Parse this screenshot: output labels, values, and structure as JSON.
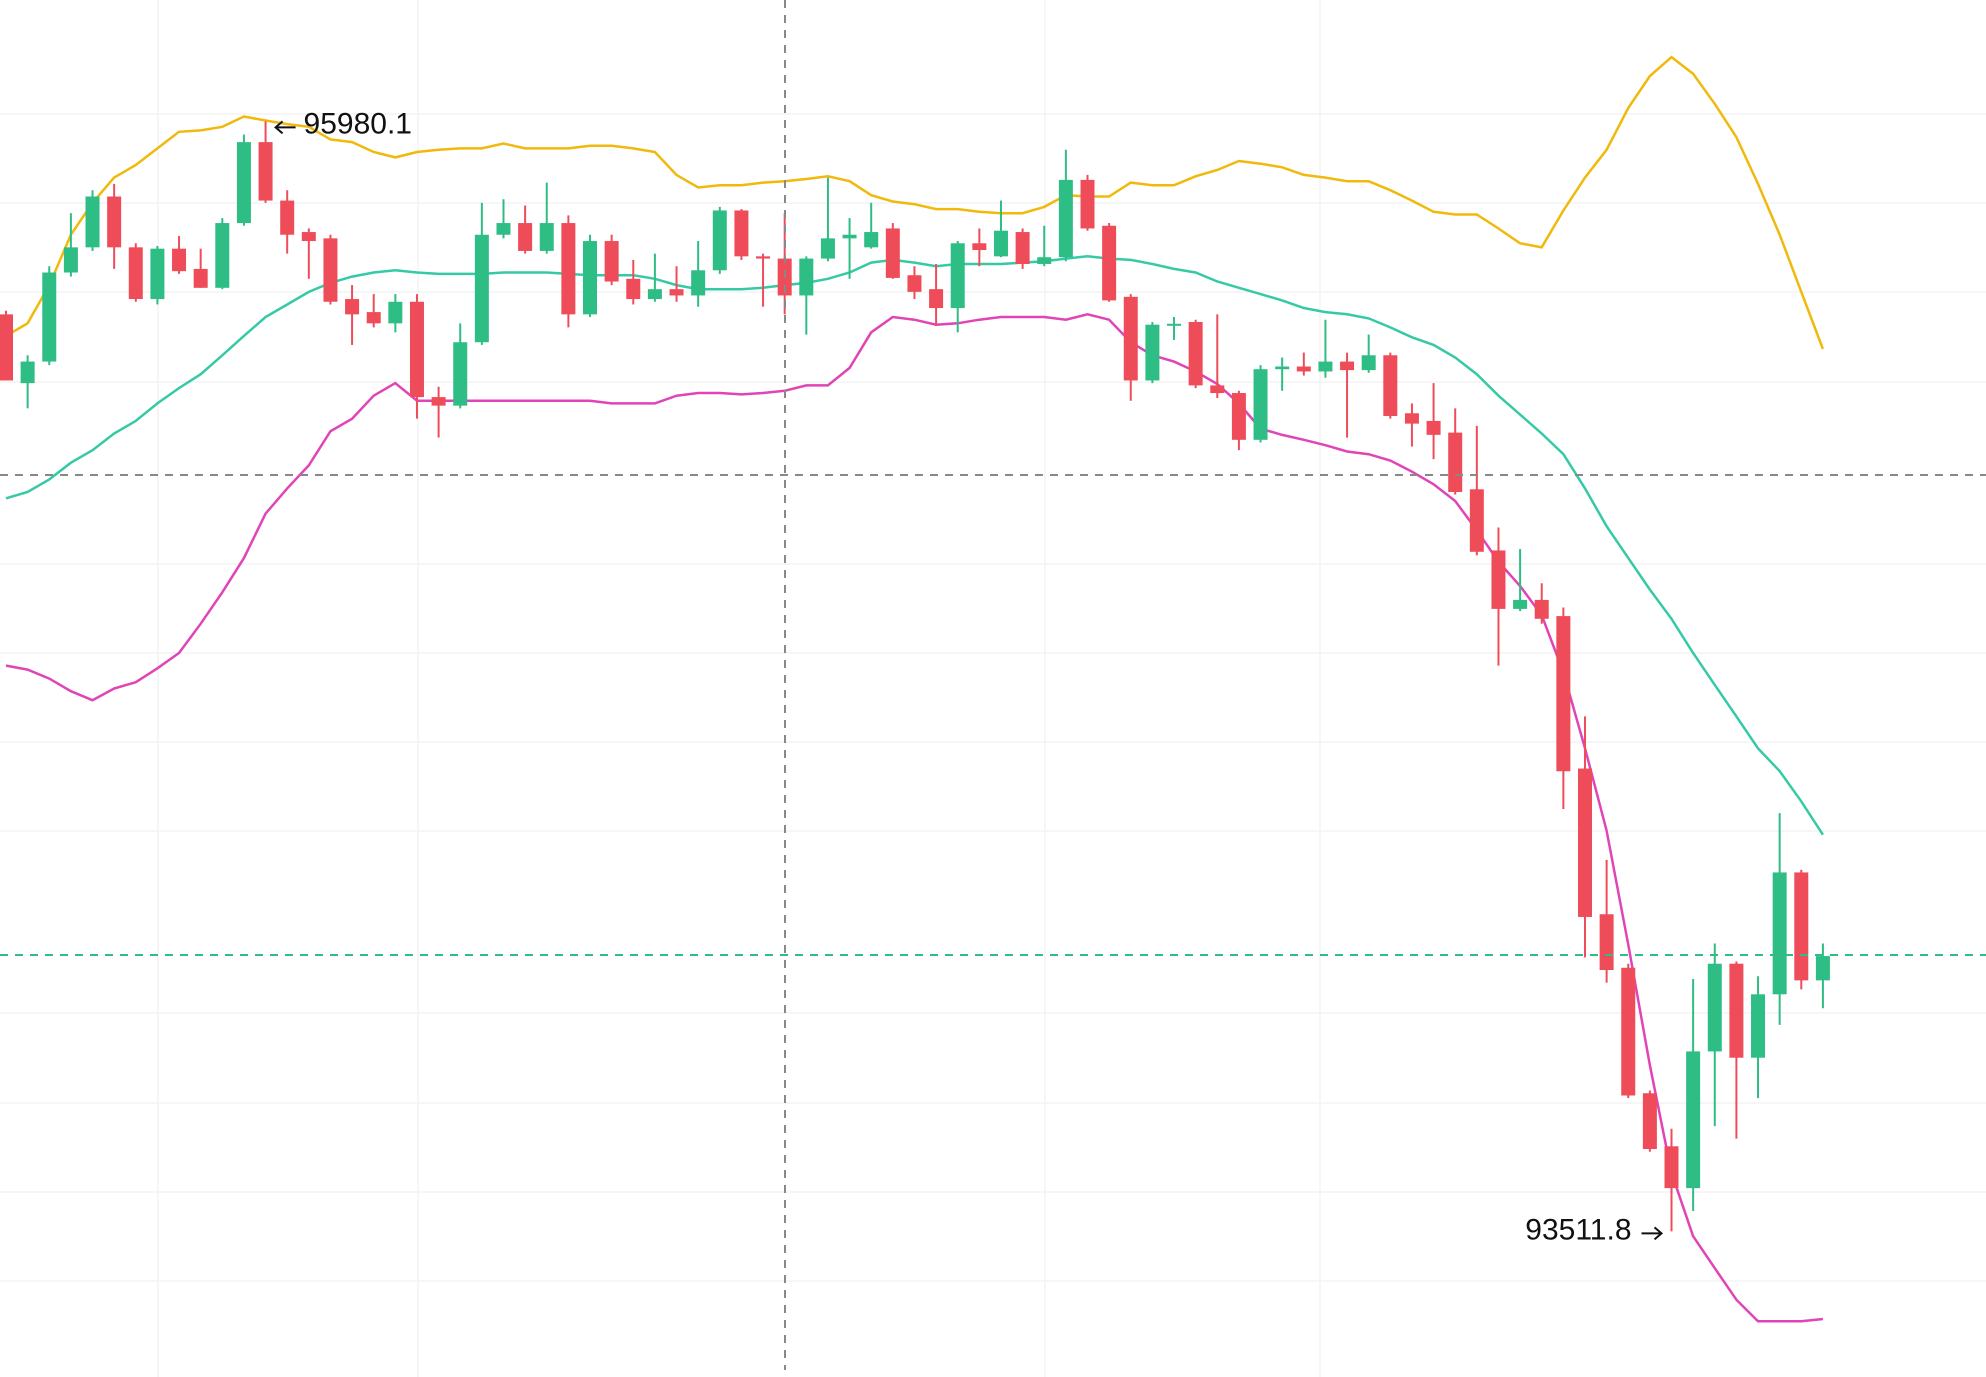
{
  "chart_data": {
    "type": "candlestick",
    "up_color": "#2ebd85",
    "down_color": "#ef4c5a",
    "ylim": [
      93188,
      96250
    ],
    "open": [
      95551,
      95398,
      95446,
      95644,
      95700,
      95813,
      95700,
      95585,
      95697,
      95652,
      95610,
      95754,
      95934,
      95804,
      95734,
      95720,
      95585,
      95556,
      95531,
      95579,
      95367,
      95348,
      95489,
      95728,
      95754,
      95692,
      95754,
      95551,
      95714,
      95630,
      95585,
      95607,
      95593,
      95649,
      95782,
      95680,
      95675,
      95593,
      95675,
      95720,
      95700,
      95742,
      95638,
      95607,
      95565,
      95709,
      95680,
      95734,
      95663,
      95678,
      95850,
      95748,
      95590,
      95404,
      95528,
      95534,
      95393,
      95376,
      95272,
      95429,
      95435,
      95424,
      95446,
      95427,
      95460,
      95331,
      95314,
      95288,
      95162,
      95026,
      94896,
      94916,
      94880,
      94541,
      94217,
      94098,
      93819,
      93701,
      93608,
      93912,
      94107,
      93898,
      94039,
      94310,
      94070
    ],
    "high": [
      95559,
      95460,
      95658,
      95776,
      95827,
      95841,
      95709,
      95703,
      95725,
      95697,
      95765,
      95951,
      95980.1,
      95827,
      95742,
      95728,
      95616,
      95596,
      95596,
      95596,
      95390,
      95531,
      95799,
      95807,
      95793,
      95844,
      95771,
      95728,
      95728,
      95672,
      95686,
      95658,
      95714,
      95790,
      95785,
      95686,
      95776,
      95680,
      95855,
      95765,
      95799,
      95754,
      95658,
      95663,
      95714,
      95742,
      95804,
      95742,
      95748,
      95917,
      95861,
      95754,
      95596,
      95534,
      95545,
      95539,
      95551,
      95381,
      95438,
      95455,
      95466,
      95539,
      95466,
      95506,
      95466,
      95353,
      95398,
      95342,
      95303,
      95077,
      95029,
      94953,
      94899,
      94657,
      94338,
      94107,
      93825,
      93740,
      94073,
      94152,
      94112,
      94079,
      94442,
      94316,
      94152
    ],
    "low": [
      95404,
      95342,
      95438,
      95635,
      95692,
      95652,
      95579,
      95573,
      95641,
      95610,
      95607,
      95748,
      95799,
      95686,
      95630,
      95573,
      95483,
      95522,
      95511,
      95319,
      95277,
      95342,
      95483,
      95720,
      95686,
      95686,
      95522,
      95545,
      95616,
      95573,
      95579,
      95579,
      95568,
      95641,
      95672,
      95568,
      95551,
      95506,
      95669,
      95630,
      95697,
      95630,
      95585,
      95525,
      95511,
      95658,
      95678,
      95652,
      95658,
      95669,
      95737,
      95579,
      95359,
      95398,
      95494,
      95387,
      95365,
      95249,
      95266,
      95381,
      95415,
      95410,
      95277,
      95421,
      95319,
      95257,
      95229,
      95150,
      95015,
      94770,
      94891,
      94863,
      94451,
      94121,
      94065,
      93808,
      93689,
      93511.8,
      93557,
      93746,
      93718,
      93808,
      93971,
      94050,
      94008
    ],
    "close": [
      95404,
      95446,
      95644,
      95700,
      95813,
      95700,
      95585,
      95697,
      95647,
      95610,
      95754,
      95934,
      95804,
      95728,
      95714,
      95579,
      95551,
      95531,
      95579,
      95367,
      95348,
      95489,
      95728,
      95754,
      95692,
      95754,
      95551,
      95714,
      95624,
      95585,
      95607,
      95593,
      95649,
      95782,
      95680,
      95675,
      95593,
      95675,
      95720,
      95728,
      95734,
      95632,
      95601,
      95565,
      95709,
      95694,
      95737,
      95663,
      95678,
      95850,
      95742,
      95582,
      95404,
      95528,
      95530,
      95393,
      95376,
      95272,
      95429,
      95435,
      95424,
      95446,
      95427,
      95460,
      95325,
      95308,
      95283,
      95156,
      95023,
      94896,
      94916,
      94874,
      94535,
      94211,
      94093,
      93814,
      93695,
      93608,
      93912,
      94107,
      93898,
      94039,
      94310,
      94070,
      94124
    ],
    "overlays": [
      {
        "color": "#f0b90b",
        "values": [
          95503,
          95531,
          95616,
          95728,
          95799,
          95855,
          95883,
          95920,
          95957,
          95960,
          95968,
          95991,
          95982,
          95974,
          95968,
          95940,
          95934,
          95912,
          95900,
          95912,
          95917,
          95920,
          95920,
          95931,
          95920,
          95920,
          95920,
          95926,
          95926,
          95920,
          95912,
          95861,
          95833,
          95838,
          95838,
          95844,
          95847,
          95852,
          95858,
          95847,
          95816,
          95802,
          95796,
          95785,
          95785,
          95779,
          95776,
          95776,
          95790,
          95816,
          95813,
          95813,
          95844,
          95838,
          95838,
          95858,
          95872,
          95892,
          95886,
          95878,
          95861,
          95855,
          95847,
          95847,
          95827,
          95804,
          95779,
          95773,
          95773,
          95742,
          95709,
          95700,
          95782,
          95855,
          95917,
          96010,
          96081,
          96123,
          96086,
          96019,
          95945,
          95841,
          95728,
          95601,
          95474
        ]
      },
      {
        "color": "#36c9a6",
        "values": [
          95142,
          95156,
          95184,
          95221,
          95249,
          95286,
          95314,
          95353,
          95387,
          95418,
          95460,
          95503,
          95545,
          95573,
          95601,
          95621,
          95635,
          95644,
          95649,
          95644,
          95641,
          95641,
          95641,
          95644,
          95644,
          95644,
          95641,
          95638,
          95638,
          95638,
          95630,
          95616,
          95607,
          95607,
          95607,
          95610,
          95616,
          95621,
          95630,
          95644,
          95666,
          95672,
          95666,
          95658,
          95663,
          95663,
          95663,
          95666,
          95669,
          95675,
          95680,
          95675,
          95672,
          95663,
          95652,
          95644,
          95624,
          95610,
          95596,
          95582,
          95565,
          95556,
          95551,
          95542,
          95522,
          95500,
          95483,
          95455,
          95418,
          95370,
          95328,
          95286,
          95240,
          95164,
          95080,
          95009,
          94939,
          94874,
          94798,
          94727,
          94657,
          94586,
          94535,
          94468,
          94394
        ]
      },
      {
        "color": "#e044b7",
        "values": [
          94770,
          94761,
          94741,
          94713,
          94693,
          94719,
          94733,
          94764,
          94798,
          94863,
          94933,
          95009,
          95108,
          95164,
          95215,
          95291,
          95319,
          95370,
          95398,
          95359,
          95359,
          95359,
          95359,
          95359,
          95359,
          95359,
          95359,
          95359,
          95353,
          95353,
          95353,
          95370,
          95376,
          95376,
          95373,
          95376,
          95381,
          95393,
          95393,
          95432,
          95511,
          95545,
          95539,
          95528,
          95531,
          95539,
          95545,
          95545,
          95545,
          95539,
          95551,
          95539,
          95489,
          95460,
          95446,
          95424,
          95396,
          95353,
          95297,
          95283,
          95272,
          95260,
          95246,
          95240,
          95226,
          95201,
          95173,
          95136,
          95071,
          95001,
          94947,
          94882,
          94755,
          94586,
          94403,
          94149,
          93881,
          93642,
          93501,
          93430,
          93360,
          93312,
          93312,
          93312,
          93317
        ]
      }
    ]
  }
}
